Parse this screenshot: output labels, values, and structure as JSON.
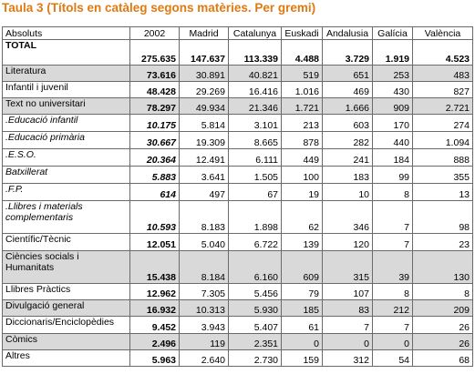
{
  "title": "Taula 3 (Títols en catàleg segons matèries. Per gremi)",
  "table": {
    "headers": [
      "Absoluts",
      "2002",
      "Madrid",
      "Catalunya",
      "Euskadi",
      "Andalusia",
      "Galícia",
      "València"
    ],
    "rows": [
      {
        "label": "TOTAL",
        "values": [
          "275.635",
          "147.637",
          "113.339",
          "4.488",
          "3.729",
          "1.919",
          "4.523"
        ],
        "shaded": false,
        "italic": false,
        "total": true
      },
      {
        "label": "Literatura",
        "values": [
          "73.616",
          "30.891",
          "40.821",
          "519",
          "651",
          "253",
          "483"
        ],
        "shaded": true,
        "italic": false,
        "total": false
      },
      {
        "label": "Infantil i juvenil",
        "values": [
          "48.428",
          "29.269",
          "16.416",
          "1.016",
          "469",
          "430",
          "827"
        ],
        "shaded": false,
        "italic": false,
        "total": false
      },
      {
        "label": "Text no universitari",
        "values": [
          "78.297",
          "49.934",
          "21.346",
          "1.721",
          "1.666",
          "909",
          "2.721"
        ],
        "shaded": true,
        "italic": false,
        "total": false
      },
      {
        "label": ".Educació infantil",
        "values": [
          "10.175",
          "5.814",
          "3.101",
          "213",
          "603",
          "170",
          "274"
        ],
        "shaded": false,
        "italic": true,
        "total": false
      },
      {
        "label": ".Educació primària",
        "values": [
          "30.667",
          "19.309",
          "8.665",
          "878",
          "282",
          "440",
          "1.094"
        ],
        "shaded": false,
        "italic": true,
        "total": false
      },
      {
        "label": ".E.S.O.",
        "values": [
          "20.364",
          "12.491",
          "6.111",
          "449",
          "241",
          "184",
          "888"
        ],
        "shaded": false,
        "italic": true,
        "total": false
      },
      {
        "label": "Batxillerat",
        "values": [
          "5.883",
          "3.641",
          "1.505",
          "100",
          "183",
          "99",
          "355"
        ],
        "shaded": false,
        "italic": true,
        "total": false
      },
      {
        "label": ".F.P.",
        "values": [
          "614",
          "497",
          "67",
          "19",
          "10",
          "8",
          "13"
        ],
        "shaded": false,
        "italic": true,
        "total": false
      },
      {
        "label": ".Llibres i materials complementaris",
        "values": [
          "10.593",
          "8.183",
          "1.898",
          "62",
          "346",
          "7",
          "98"
        ],
        "shaded": false,
        "italic": true,
        "total": false
      },
      {
        "label": "Científic/Tècnic",
        "values": [
          "12.051",
          "5.040",
          "6.722",
          "139",
          "120",
          "7",
          "23"
        ],
        "shaded": false,
        "italic": false,
        "total": false
      },
      {
        "label": "Ciències socials i Humanitats",
        "values": [
          "15.438",
          "8.184",
          "6.160",
          "609",
          "315",
          "39",
          "130"
        ],
        "shaded": true,
        "italic": false,
        "total": false
      },
      {
        "label": "Llibres Pràctics",
        "values": [
          "12.962",
          "7.305",
          "5.456",
          "79",
          "107",
          "8",
          "8"
        ],
        "shaded": false,
        "italic": false,
        "total": false
      },
      {
        "label": "Divulgació general",
        "values": [
          "16.932",
          "10.313",
          "5.930",
          "185",
          "83",
          "212",
          "209"
        ],
        "shaded": true,
        "italic": false,
        "total": false
      },
      {
        "label": "Diccionaris/Enciclopèdies",
        "values": [
          "9.452",
          "3.943",
          "5.407",
          "61",
          "7",
          "7",
          "26"
        ],
        "shaded": false,
        "italic": false,
        "total": false
      },
      {
        "label": "Còmics",
        "values": [
          "2.496",
          "119",
          "2.351",
          "0",
          "0",
          "0",
          "26"
        ],
        "shaded": true,
        "italic": false,
        "total": false
      },
      {
        "label": "Altres",
        "values": [
          "5.963",
          "2.640",
          "2.730",
          "159",
          "312",
          "54",
          "68"
        ],
        "shaded": false,
        "italic": false,
        "total": false
      }
    ]
  }
}
